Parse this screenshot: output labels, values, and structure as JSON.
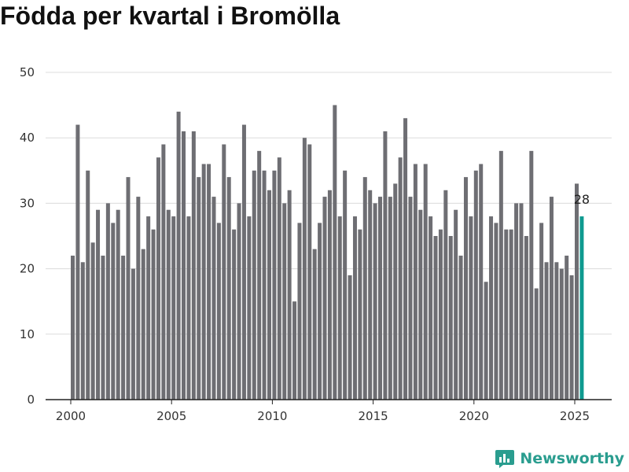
{
  "title": "Födda per kvartal i Bromölla",
  "brand": {
    "name": "Newsworthy",
    "logo_icon": "bar-chart-logo-icon",
    "color": "#2a9d8f"
  },
  "chart_data": {
    "type": "bar",
    "title": "Födda per kvartal i Bromölla",
    "xlabel": "",
    "ylabel": "",
    "ylim": [
      0,
      50
    ],
    "yticks": [
      0,
      10,
      20,
      30,
      40,
      50
    ],
    "xticks": [
      "2000",
      "2005",
      "2010",
      "2015",
      "2020",
      "2025"
    ],
    "x_start_year": 2000,
    "grid": true,
    "bar_color": "#6e6e73",
    "highlight_color": "#0f9a90",
    "highlight_index": 101,
    "highlight_label": "28",
    "values": [
      22,
      42,
      21,
      35,
      24,
      29,
      22,
      30,
      27,
      29,
      22,
      34,
      20,
      31,
      23,
      28,
      26,
      37,
      39,
      29,
      28,
      44,
      41,
      28,
      41,
      34,
      36,
      36,
      31,
      27,
      39,
      34,
      26,
      30,
      42,
      28,
      35,
      38,
      35,
      32,
      35,
      37,
      30,
      32,
      15,
      27,
      40,
      39,
      23,
      27,
      31,
      32,
      45,
      28,
      35,
      19,
      28,
      26,
      34,
      32,
      30,
      31,
      41,
      31,
      33,
      37,
      43,
      31,
      36,
      29,
      36,
      28,
      25,
      26,
      32,
      25,
      29,
      22,
      34,
      28,
      35,
      36,
      18,
      28,
      27,
      38,
      26,
      26,
      30,
      30,
      25,
      38,
      17,
      27,
      21,
      31,
      21,
      20,
      22,
      19,
      33,
      28
    ]
  }
}
